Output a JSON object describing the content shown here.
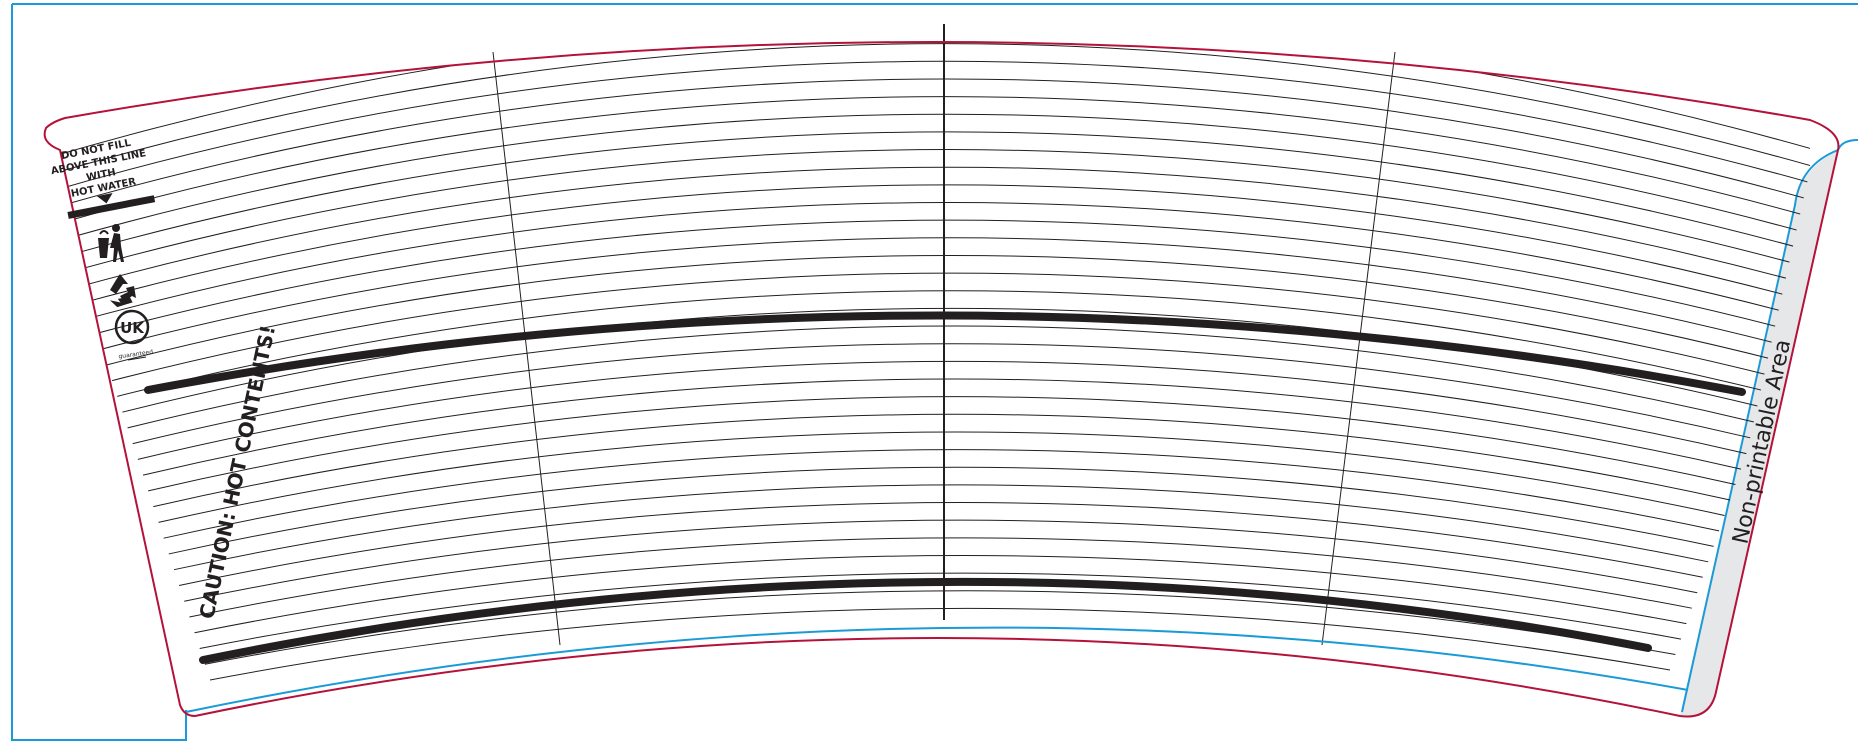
{
  "template": {
    "fill_warning": [
      "DO NOT FILL",
      "ABOVE THIS LINE",
      "WITH",
      "HOT WATER"
    ],
    "caution_text": "CAUTION: HOT CONTENTS!",
    "non_printable_label": "Non-printable Area",
    "uk_badge_text": "UK",
    "uk_badge_caption": "guaranteed",
    "icons": [
      "tidyman-icon",
      "recycle-icon",
      "uk-guaranteed-icon"
    ],
    "colors": {
      "cut_line": "#b5123a",
      "bleed_line": "#1a9bd7",
      "guide_line": "#231f20",
      "non_printable_fill": "#e6e7e8"
    }
  }
}
